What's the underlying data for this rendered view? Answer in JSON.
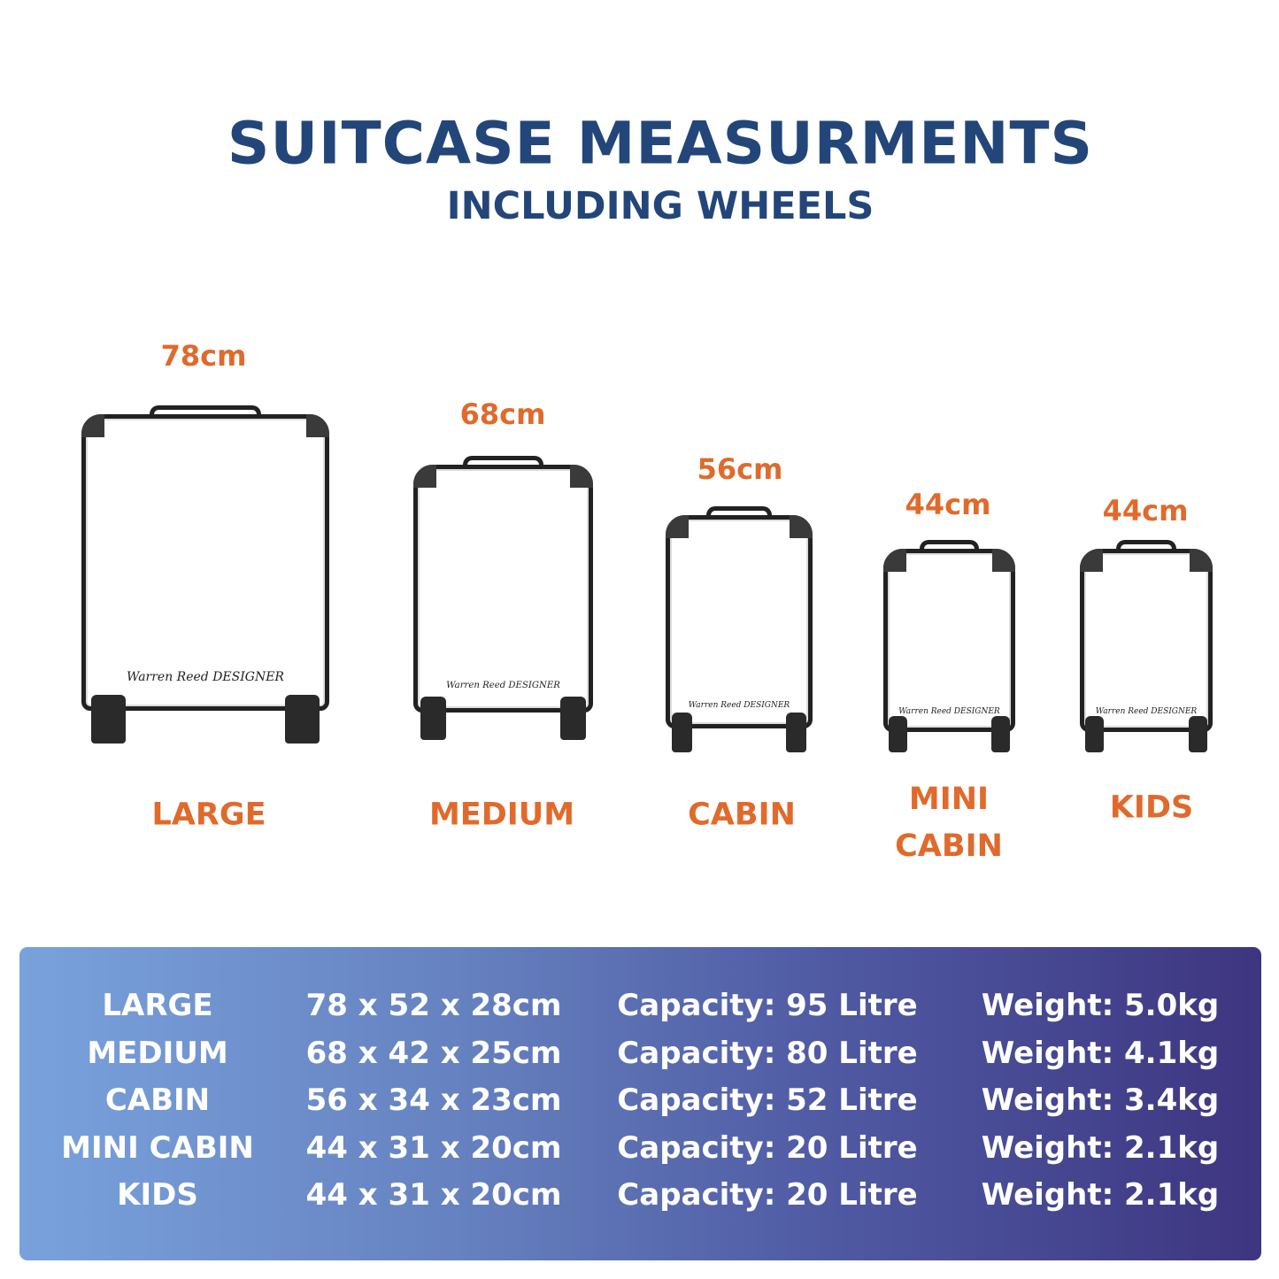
{
  "header": {
    "title": "SUITCASE MEASURMENTS",
    "subtitle": "INCLUDING WHEELS"
  },
  "brand_logo": "Warren Reed DESIGNER",
  "suitcases": [
    {
      "height": "78cm",
      "name": "LARGE"
    },
    {
      "height": "68cm",
      "name": "MEDIUM"
    },
    {
      "height": "56cm",
      "name": "CABIN"
    },
    {
      "height": "44cm",
      "name": "MINI",
      "name2": "CABIN"
    },
    {
      "height": "44cm",
      "name": "KIDS"
    }
  ],
  "colors": {
    "title": "#23467a",
    "accent": "#e06a2c",
    "panel_start": "#79a2dc",
    "panel_end": "#3e3580"
  },
  "table": {
    "rows": [
      {
        "size": "LARGE",
        "dims": "78 x 52 x 28cm",
        "capacity": "Capacity: 95 Litre",
        "weight": "Weight: 5.0kg"
      },
      {
        "size": "MEDIUM",
        "dims": "68 x 42 x 25cm",
        "capacity": "Capacity: 80 Litre",
        "weight": "Weight: 4.1kg"
      },
      {
        "size": "CABIN",
        "dims": "56 x 34 x 23cm",
        "capacity": "Capacity: 52 Litre",
        "weight": "Weight: 3.4kg"
      },
      {
        "size": "MINI CABIN",
        "dims": "44 x 31 x 20cm",
        "capacity": "Capacity: 20 Litre",
        "weight": "Weight: 2.1kg"
      },
      {
        "size": "KIDS",
        "dims": "44 x 31 x 20cm",
        "capacity": "Capacity: 20 Litre",
        "weight": "Weight: 2.1kg"
      }
    ]
  }
}
